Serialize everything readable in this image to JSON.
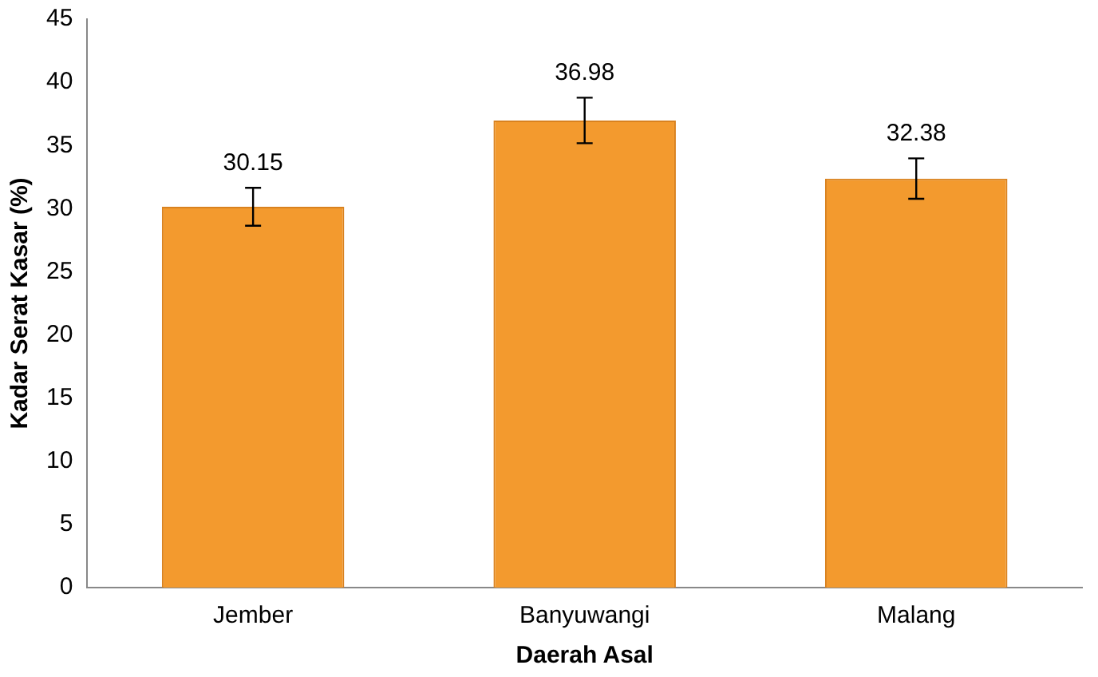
{
  "chart_data": {
    "type": "bar",
    "xlabel": "Daerah Asal",
    "ylabel": "Kadar Serat Kasar (%)",
    "categories": [
      "Jember",
      "Banyuwangi",
      "Malang"
    ],
    "values": [
      30.15,
      36.98,
      32.38
    ],
    "errors": [
      1.5,
      1.8,
      1.6
    ],
    "color": "#f39a2e",
    "ylim": [
      0,
      45
    ],
    "yticks": [
      0,
      5,
      10,
      15,
      20,
      25,
      30,
      35,
      40,
      45
    ],
    "data_labels": true,
    "grid": false,
    "legend": false
  }
}
